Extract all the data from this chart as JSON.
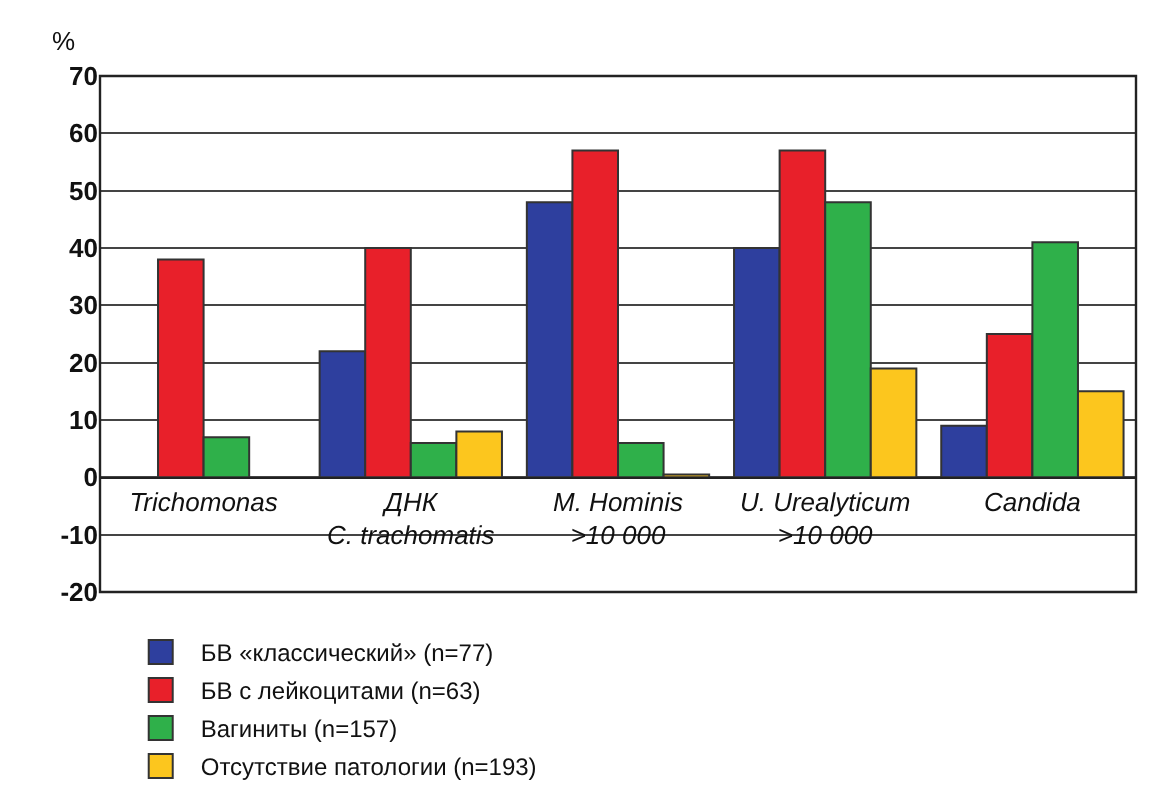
{
  "chart_data": {
    "type": "bar",
    "ylabel": "%",
    "categories": [
      "Trichomonas",
      "ДНК\nC. trachomatis",
      "M. Hominis\n>10 000",
      "U. Urealyticum\n>10 000",
      "Candida"
    ],
    "series": [
      {
        "name": "БВ «классический» (n=77)",
        "color": "#2e3f9e",
        "values": [
          null,
          22,
          48,
          40,
          9
        ]
      },
      {
        "name": "БВ с лейкоцитами (n=63)",
        "color": "#e8202a",
        "values": [
          38,
          40,
          57,
          57,
          25
        ]
      },
      {
        "name": "Вагиниты (n=157)",
        "color": "#2fb04a",
        "values": [
          7,
          6,
          6,
          48,
          41
        ]
      },
      {
        "name": "Отсутствие патологии (n=193)",
        "color": "#fcc61e",
        "values": [
          null,
          8,
          0.5,
          19,
          15
        ]
      }
    ],
    "ylim": [
      -20,
      70
    ],
    "yticks": [
      -20,
      -10,
      0,
      10,
      20,
      30,
      40,
      50,
      60,
      70
    ],
    "grid": "y",
    "legend": "bottom"
  }
}
